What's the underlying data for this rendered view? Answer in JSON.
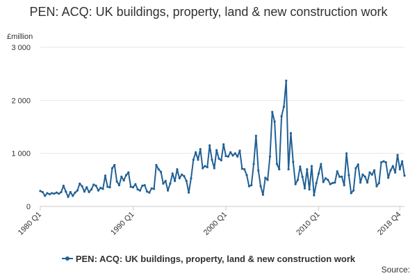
{
  "chart_data": {
    "type": "line",
    "title": "PEN: ACQ: UK buildings, property, land & new construction work",
    "ylabel": "£million",
    "xlabel": "",
    "ylim": [
      0,
      3000
    ],
    "y_ticks": [
      0,
      1000,
      2000,
      3000
    ],
    "y_tick_labels": [
      "0",
      "1 000",
      "2 000",
      "3 000"
    ],
    "x_tick_labels": [
      "1980 Q1",
      "1990 Q1",
      "2000 Q1",
      "2010 Q1",
      "2018 Q4"
    ],
    "x_tick_positions": [
      0,
      40,
      80,
      120,
      155
    ],
    "series": [
      {
        "name": "PEN: ACQ: UK buildings, property, land & new construction work",
        "color": "#206095",
        "values": [
          290,
          270,
          200,
          250,
          230,
          250,
          240,
          260,
          240,
          270,
          390,
          280,
          180,
          270,
          200,
          260,
          300,
          430,
          380,
          280,
          360,
          270,
          320,
          410,
          390,
          300,
          350,
          330,
          580,
          370,
          360,
          720,
          780,
          470,
          400,
          560,
          490,
          590,
          640,
          370,
          360,
          420,
          320,
          300,
          390,
          400,
          280,
          260,
          340,
          330,
          780,
          700,
          650,
          430,
          480,
          300,
          430,
          620,
          480,
          700,
          530,
          600,
          570,
          480,
          260,
          530,
          880,
          1020,
          880,
          1080,
          720,
          760,
          740,
          1150,
          880,
          720,
          1060,
          900,
          870,
          1170,
          950,
          940,
          1020,
          960,
          1000,
          940,
          1050,
          710,
          700,
          590,
          380,
          400,
          800,
          1330,
          680,
          380,
          220,
          540,
          500,
          940,
          1780,
          1600,
          800,
          700,
          1700,
          1880,
          2370,
          700,
          1380,
          840,
          420,
          500,
          750,
          560,
          340,
          700,
          320,
          760,
          210,
          440,
          620,
          800,
          460,
          530,
          500,
          420,
          440,
          450,
          660,
          560,
          560,
          400,
          1000,
          590,
          250,
          300,
          720,
          790,
          450,
          600,
          560,
          450,
          640,
          600,
          680,
          380,
          440,
          830,
          850,
          830,
          540,
          680,
          760,
          640,
          970,
          700,
          850,
          580
        ]
      }
    ]
  },
  "legend": {
    "label": "PEN: ACQ: UK buildings, property, land & new construction work"
  },
  "source": {
    "label": "Source:"
  }
}
